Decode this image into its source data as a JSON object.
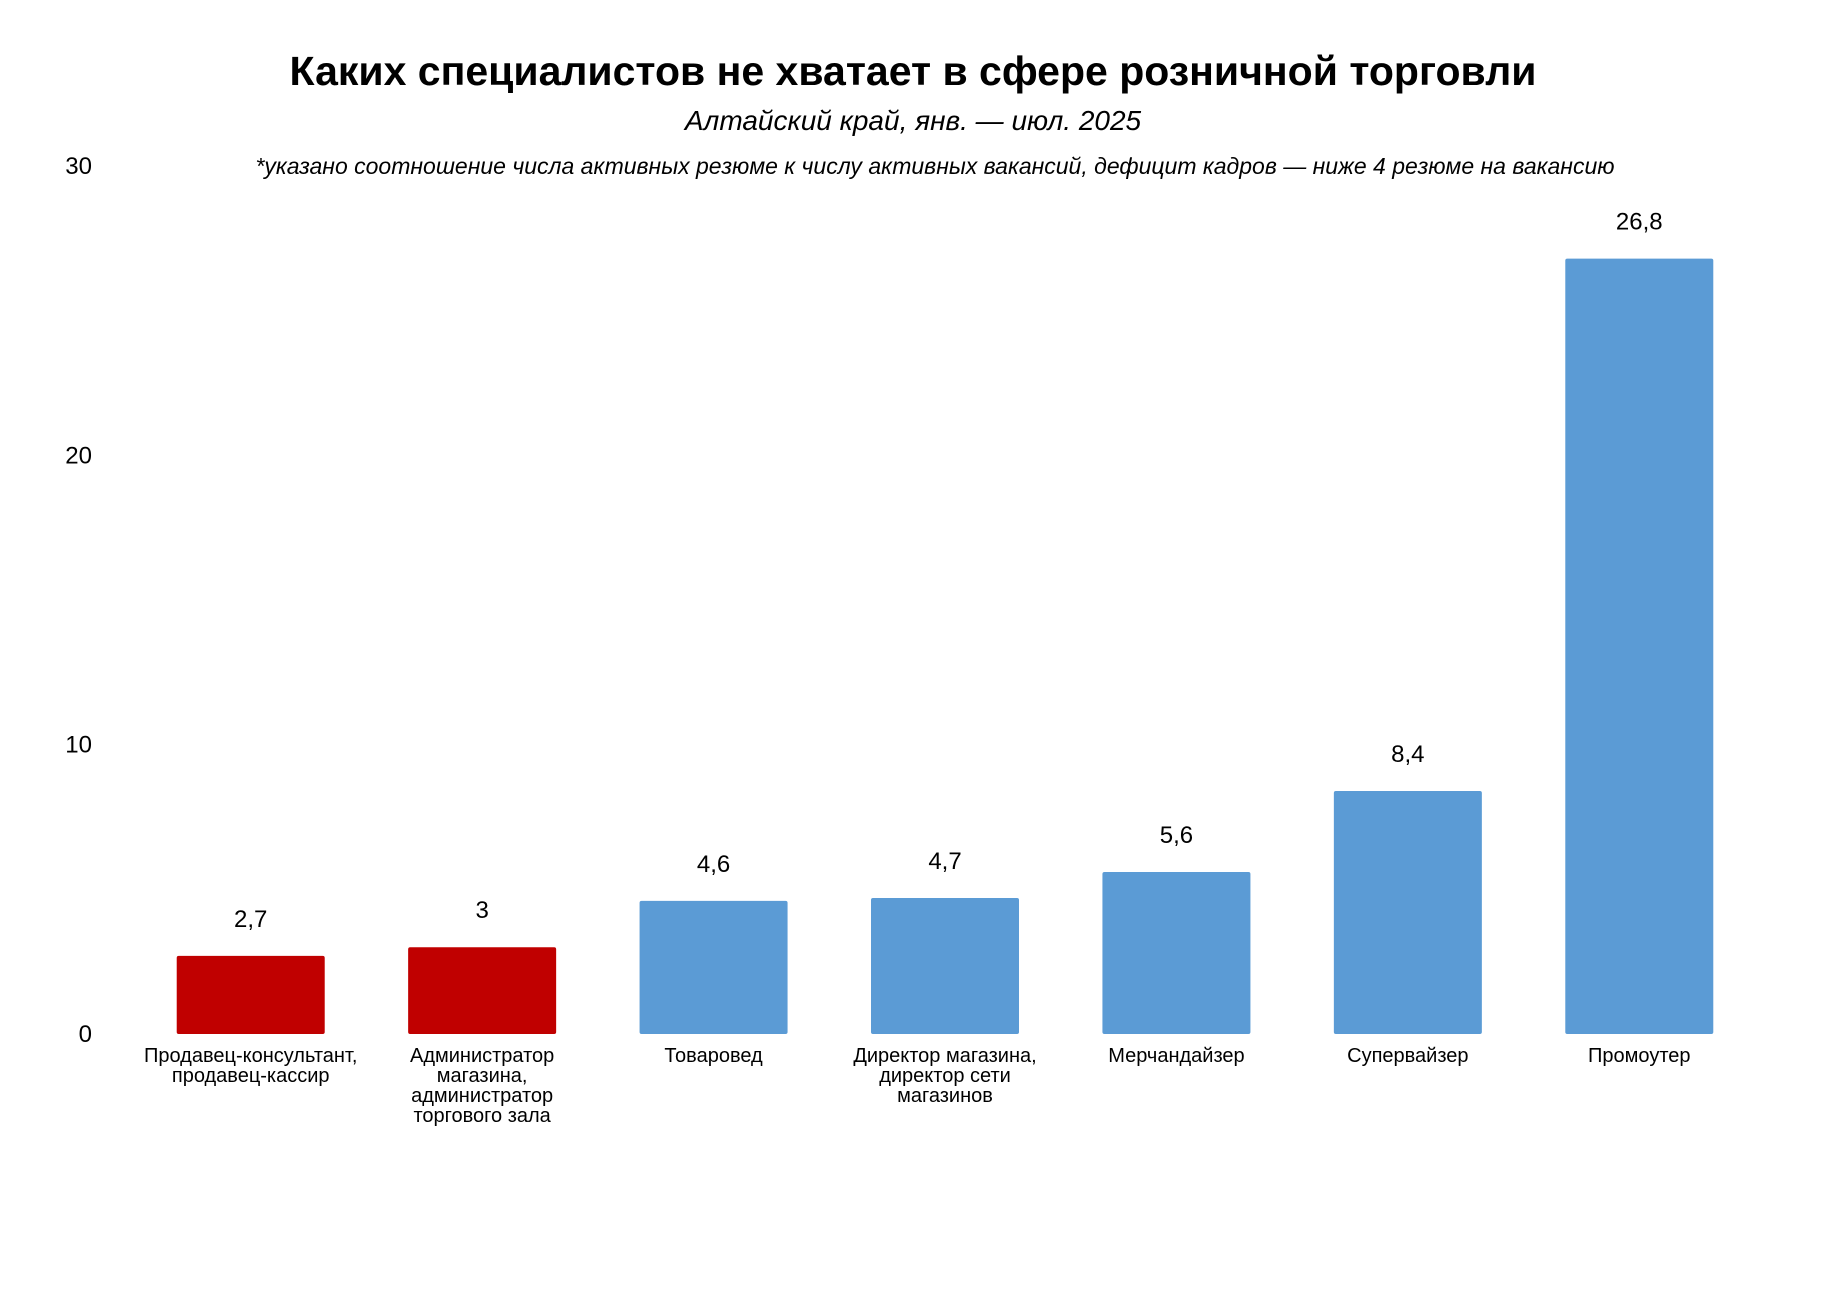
{
  "chart_data": {
    "type": "bar",
    "title": "Каких специалистов не хватает в сфере розничной торговли",
    "subtitle": "Алтайский край, янв. — июл. 2025",
    "note": "*указано соотношение числа активных резюме к числу активных вакансий, дефицит кадров — ниже 4 резюме на вакансию",
    "categories": [
      [
        "Продавец-консультант,",
        "продавец-кассир"
      ],
      [
        "Администратор",
        "магазина,",
        "администратор",
        "торгового зала"
      ],
      [
        "Товаровед"
      ],
      [
        "Директор магазина,",
        "директор сети",
        "магазинов"
      ],
      [
        "Мерчандайзер"
      ],
      [
        "Супервайзер"
      ],
      [
        "Промоутер"
      ]
    ],
    "values": [
      2.7,
      3,
      4.6,
      4.7,
      5.6,
      8.4,
      26.8
    ],
    "value_labels": [
      "2,7",
      "3",
      "4,6",
      "4,7",
      "5,6",
      "8,4",
      "26,8"
    ],
    "bar_colors": [
      "#c00000",
      "#c00000",
      "#5b9bd5",
      "#5b9bd5",
      "#5b9bd5",
      "#5b9bd5",
      "#5b9bd5"
    ],
    "colors": {
      "deficit": "#c00000",
      "normal": "#5b9bd5"
    },
    "ylim": [
      0,
      30
    ],
    "yticks": [
      0,
      10,
      20,
      30
    ],
    "ytick_labels": [
      "0",
      "10",
      "20",
      "30"
    ],
    "xlabel": "",
    "ylabel": "",
    "grid": false,
    "legend": "none"
  }
}
